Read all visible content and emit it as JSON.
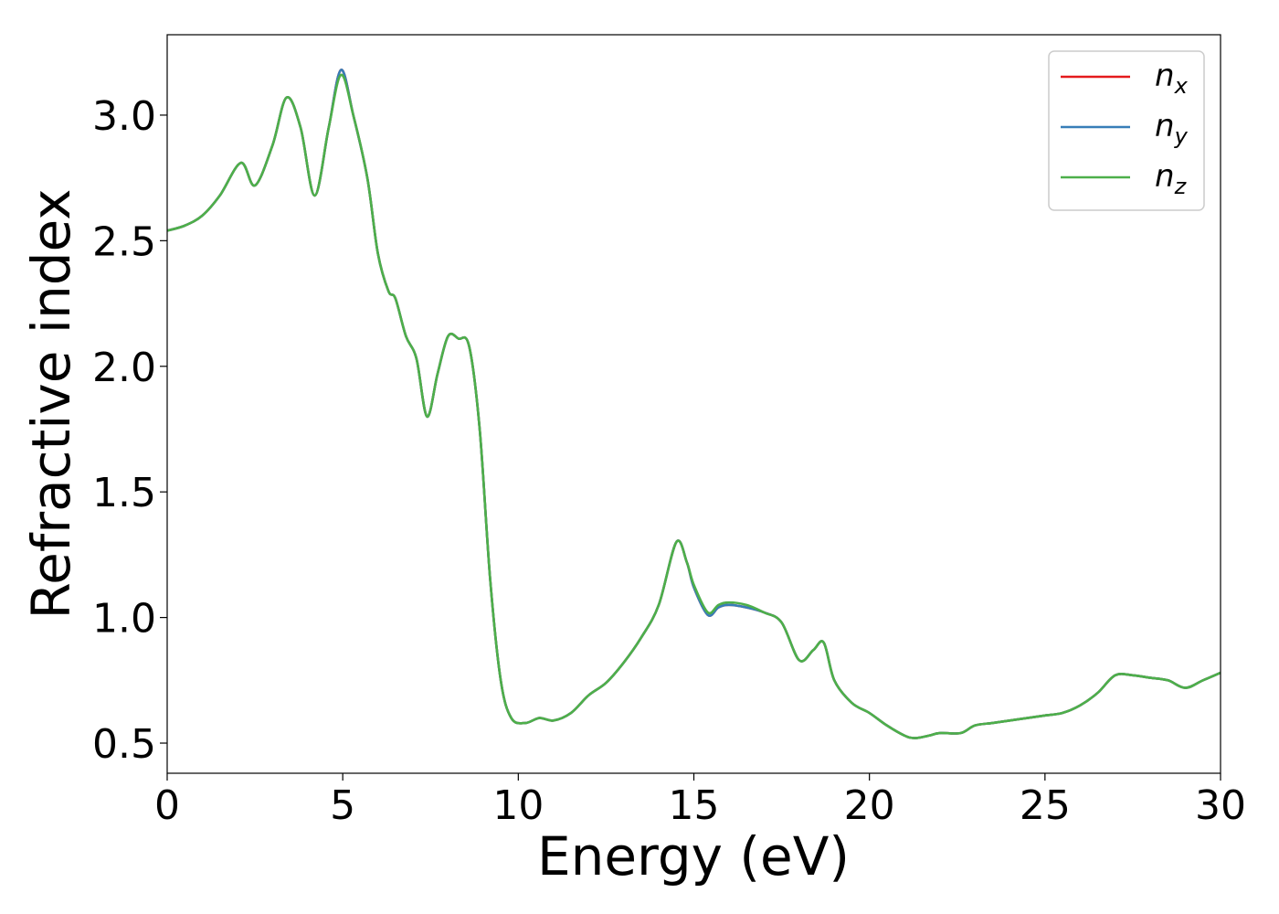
{
  "chart_data": {
    "type": "line",
    "xlabel": "Energy (eV)",
    "ylabel": "Refractive index",
    "xlim": [
      0,
      30
    ],
    "ylim": [
      0.38,
      3.32
    ],
    "xticks": [
      0,
      5,
      10,
      15,
      20,
      25,
      30
    ],
    "xtick_labels": [
      "0",
      "5",
      "10",
      "15",
      "20",
      "25",
      "30"
    ],
    "yticks": [
      0.5,
      1.0,
      1.5,
      2.0,
      2.5,
      3.0
    ],
    "ytick_labels": [
      "0.5",
      "1.0",
      "1.5",
      "2.0",
      "2.5",
      "3.0"
    ],
    "grid": false,
    "legend_position": "top-right",
    "x": [
      0,
      0.5,
      1,
      1.5,
      2.1,
      2.5,
      3,
      3.4,
      3.8,
      4.2,
      4.6,
      4.95,
      5.3,
      5.7,
      6.0,
      6.3,
      6.5,
      6.8,
      7.1,
      7.4,
      7.7,
      8.0,
      8.3,
      8.6,
      8.9,
      9.2,
      9.5,
      9.8,
      10.2,
      10.6,
      11.0,
      11.5,
      12.0,
      12.5,
      13.0,
      13.5,
      14.0,
      14.5,
      14.8,
      15.0,
      15.4,
      15.7,
      16.0,
      16.5,
      17.0,
      17.5,
      18.0,
      18.4,
      18.7,
      19.0,
      19.5,
      20.0,
      20.5,
      21.0,
      21.3,
      21.7,
      22.0,
      22.6,
      23.0,
      23.5,
      24.0,
      24.5,
      25.0,
      25.5,
      26.0,
      26.5,
      27.0,
      27.5,
      28.0,
      28.5,
      29.0,
      29.5,
      30.0
    ],
    "series": [
      {
        "name": "n_x",
        "color": "#e41a1c",
        "values": [
          2.54,
          2.56,
          2.6,
          2.68,
          2.81,
          2.72,
          2.88,
          3.07,
          2.95,
          2.68,
          2.95,
          3.18,
          3.0,
          2.75,
          2.45,
          2.3,
          2.27,
          2.12,
          2.03,
          1.8,
          1.97,
          2.12,
          2.11,
          2.08,
          1.75,
          1.15,
          0.75,
          0.6,
          0.58,
          0.6,
          0.59,
          0.62,
          0.69,
          0.74,
          0.82,
          0.92,
          1.05,
          1.3,
          1.22,
          1.12,
          1.01,
          1.04,
          1.05,
          1.04,
          1.02,
          0.98,
          0.83,
          0.87,
          0.9,
          0.75,
          0.66,
          0.62,
          0.57,
          0.53,
          0.52,
          0.53,
          0.54,
          0.54,
          0.57,
          0.58,
          0.59,
          0.6,
          0.61,
          0.62,
          0.65,
          0.7,
          0.77,
          0.77,
          0.76,
          0.75,
          0.72,
          0.75,
          0.78
        ]
      },
      {
        "name": "n_y",
        "color": "#377eb8",
        "values": [
          2.54,
          2.56,
          2.6,
          2.68,
          2.81,
          2.72,
          2.88,
          3.07,
          2.95,
          2.68,
          2.95,
          3.18,
          3.0,
          2.75,
          2.45,
          2.3,
          2.27,
          2.12,
          2.03,
          1.8,
          1.97,
          2.12,
          2.11,
          2.08,
          1.75,
          1.15,
          0.75,
          0.6,
          0.58,
          0.6,
          0.59,
          0.62,
          0.69,
          0.74,
          0.82,
          0.92,
          1.05,
          1.3,
          1.22,
          1.12,
          1.01,
          1.04,
          1.05,
          1.04,
          1.02,
          0.98,
          0.83,
          0.87,
          0.9,
          0.75,
          0.66,
          0.62,
          0.57,
          0.53,
          0.52,
          0.53,
          0.54,
          0.54,
          0.57,
          0.58,
          0.59,
          0.6,
          0.61,
          0.62,
          0.65,
          0.7,
          0.77,
          0.77,
          0.76,
          0.75,
          0.72,
          0.75,
          0.78
        ]
      },
      {
        "name": "n_z",
        "color": "#4daf4a",
        "values": [
          2.54,
          2.56,
          2.6,
          2.68,
          2.81,
          2.72,
          2.88,
          3.07,
          2.95,
          2.68,
          2.95,
          3.16,
          3.0,
          2.75,
          2.45,
          2.3,
          2.27,
          2.12,
          2.03,
          1.8,
          1.97,
          2.12,
          2.11,
          2.08,
          1.75,
          1.15,
          0.75,
          0.6,
          0.58,
          0.6,
          0.59,
          0.62,
          0.69,
          0.74,
          0.82,
          0.92,
          1.05,
          1.3,
          1.22,
          1.13,
          1.02,
          1.05,
          1.06,
          1.05,
          1.02,
          0.98,
          0.83,
          0.87,
          0.9,
          0.75,
          0.66,
          0.62,
          0.57,
          0.53,
          0.52,
          0.53,
          0.54,
          0.54,
          0.57,
          0.58,
          0.59,
          0.6,
          0.61,
          0.62,
          0.65,
          0.7,
          0.77,
          0.77,
          0.76,
          0.75,
          0.72,
          0.75,
          0.78
        ]
      }
    ],
    "legend": [
      {
        "base": "n",
        "sub": "x",
        "color": "#e41a1c"
      },
      {
        "base": "n",
        "sub": "y",
        "color": "#377eb8"
      },
      {
        "base": "n",
        "sub": "z",
        "color": "#4daf4a"
      }
    ]
  }
}
